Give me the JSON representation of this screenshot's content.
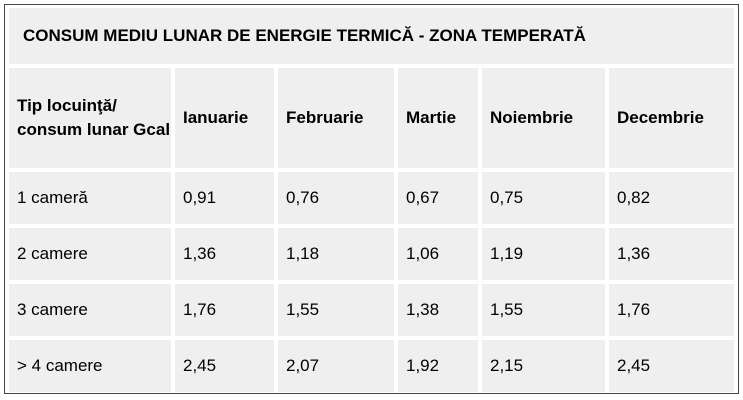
{
  "table": {
    "title": "CONSUM MEDIU LUNAR DE ENERGIE TERMICĂ - ZONA TEMPERATĂ",
    "header": [
      "Tip locuinţă/ consum lunar Gcal",
      "Ianuarie",
      "Februarie",
      "Martie",
      "Noiembrie",
      "Decembrie"
    ],
    "rows": [
      [
        "1 cameră",
        "0,91",
        "0,76",
        "0,67",
        "0,75",
        "0,82"
      ],
      [
        "2 camere",
        "1,36",
        "1,18",
        "1,06",
        "1,19",
        "1,36"
      ],
      [
        "3 camere",
        "1,76",
        "1,55",
        "1,38",
        "1,55",
        "1,76"
      ],
      [
        "> 4 camere",
        "2,45",
        "2,07",
        "1,92",
        "2,15",
        "2,45"
      ]
    ]
  }
}
